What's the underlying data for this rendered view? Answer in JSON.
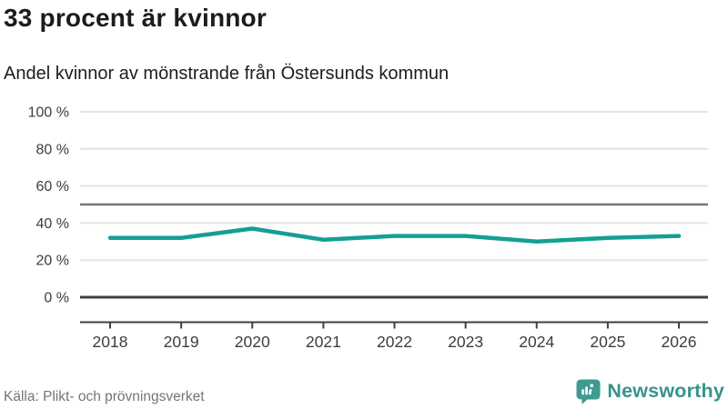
{
  "header": {
    "title": "33 procent är kvinnor",
    "subtitle": "Andel kvinnor av mönstrande från Östersunds kommun"
  },
  "chart_data": {
    "type": "line",
    "x": [
      2018,
      2019,
      2020,
      2021,
      2022,
      2023,
      2024,
      2025,
      2026
    ],
    "series": [
      {
        "name": "Andel kvinnor av mönstrande",
        "values": [
          32,
          32,
          37,
          31,
          33,
          33,
          30,
          32,
          33
        ]
      }
    ],
    "unit": "%",
    "ylim": [
      0,
      100
    ],
    "yticks": [
      0,
      20,
      40,
      60,
      80,
      100
    ],
    "ytick_labels": [
      "0 %",
      "20 %",
      "40 %",
      "60 %",
      "80 %",
      "100 %"
    ],
    "reference_line": 50,
    "grid": true,
    "legend_position": "none",
    "title": "33 procent är kvinnor",
    "subtitle": "Andel kvinnor av mönstrande från Östersunds kommun",
    "line_color": "#149e96"
  },
  "footer": {
    "source": "Källa: Plikt- och prövningsverket",
    "brand": "Newsworthy"
  },
  "colors": {
    "accent_teal": "#149e96",
    "brand_teal": "#37938b",
    "grid_light": "#e4e4e4",
    "grid_dark": "#757575",
    "axis_dark": "#3f3f3f",
    "text_dark": "#1c1c1c",
    "muted_text": "#757575"
  }
}
